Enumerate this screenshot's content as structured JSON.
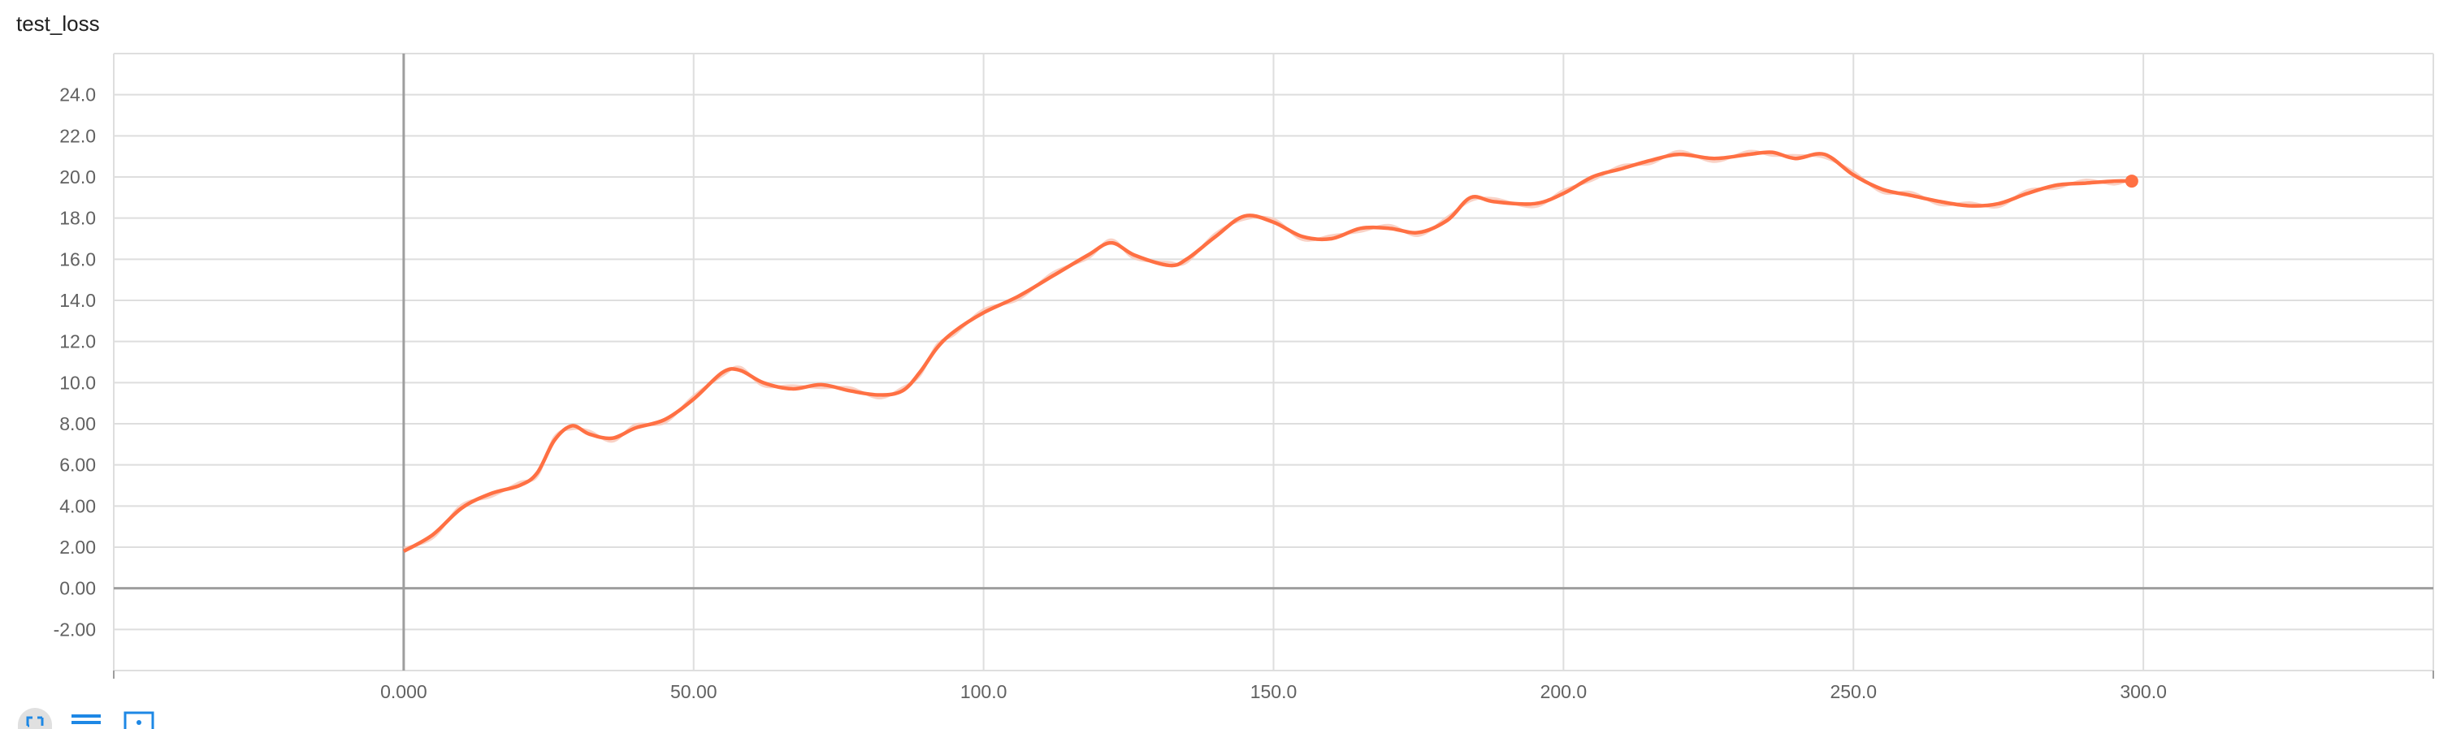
{
  "title": "test_loss",
  "toolbar": [
    {
      "name": "expand-icon",
      "active": true
    },
    {
      "name": "list-icon",
      "active": false
    },
    {
      "name": "fit-domain-icon",
      "active": false
    }
  ],
  "colors": {
    "series": "#ff7043",
    "series_raw": "#f8c7b8",
    "grid": "#dedede",
    "axis": "#9e9e9e",
    "tick_text": "#616161"
  },
  "chart_data": {
    "type": "line",
    "title": "test_loss",
    "xlabel": "",
    "ylabel": "",
    "xlim": [
      -50,
      350
    ],
    "ylim": [
      -4,
      26
    ],
    "grid": true,
    "x_ticks": [
      {
        "value": 0,
        "label": "0.000"
      },
      {
        "value": 50,
        "label": "50.00"
      },
      {
        "value": 100,
        "label": "100.0"
      },
      {
        "value": 150,
        "label": "150.0"
      },
      {
        "value": 200,
        "label": "200.0"
      },
      {
        "value": 250,
        "label": "250.0"
      },
      {
        "value": 300,
        "label": "300.0"
      }
    ],
    "y_ticks": [
      {
        "value": -2,
        "label": "-2.00"
      },
      {
        "value": 0,
        "label": "0.00"
      },
      {
        "value": 2,
        "label": "2.00"
      },
      {
        "value": 4,
        "label": "4.00"
      },
      {
        "value": 6,
        "label": "6.00"
      },
      {
        "value": 8,
        "label": "8.00"
      },
      {
        "value": 10,
        "label": "10.0"
      },
      {
        "value": 12,
        "label": "12.0"
      },
      {
        "value": 14,
        "label": "14.0"
      },
      {
        "value": 16,
        "label": "16.0"
      },
      {
        "value": 18,
        "label": "18.0"
      },
      {
        "value": 20,
        "label": "20.0"
      },
      {
        "value": 22,
        "label": "22.0"
      },
      {
        "value": 24,
        "label": "24.0"
      }
    ],
    "series": [
      {
        "x": [
          0,
          5,
          10,
          15,
          20,
          23,
          26,
          29,
          32,
          36,
          40,
          45,
          50,
          55,
          58,
          62,
          67,
          72,
          77,
          82,
          86,
          89,
          92,
          95,
          100,
          106,
          112,
          118,
          122,
          126,
          132,
          135,
          140,
          145,
          150,
          155,
          160,
          165,
          170,
          175,
          180,
          184,
          188,
          195,
          200,
          205,
          210,
          215,
          220,
          226,
          232,
          236,
          240,
          245,
          250,
          255,
          260,
          265,
          270,
          275,
          280,
          285,
          290,
          295,
          298
        ],
        "y": [
          1.8,
          2.6,
          3.9,
          4.6,
          5.0,
          5.6,
          7.2,
          7.9,
          7.5,
          7.3,
          7.8,
          8.2,
          9.2,
          10.5,
          10.6,
          10.0,
          9.7,
          9.9,
          9.6,
          9.4,
          9.6,
          10.5,
          11.7,
          12.5,
          13.4,
          14.2,
          15.2,
          16.2,
          16.8,
          16.2,
          15.7,
          16.0,
          17.1,
          18.1,
          17.8,
          17.1,
          17.0,
          17.5,
          17.5,
          17.3,
          17.9,
          19.0,
          18.8,
          18.7,
          19.2,
          20.0,
          20.4,
          20.8,
          21.1,
          20.9,
          21.1,
          21.2,
          20.9,
          21.1,
          20.1,
          19.4,
          19.1,
          18.8,
          18.6,
          18.7,
          19.2,
          19.6,
          19.7,
          19.8,
          19.8
        ]
      }
    ]
  }
}
